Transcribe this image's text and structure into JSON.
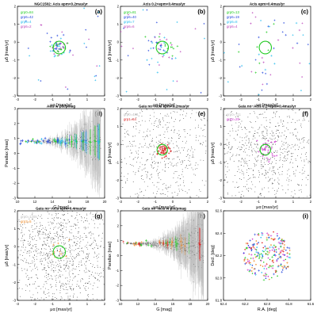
{
  "chart_data": [
    {
      "panel": "a",
      "type": "scatter",
      "title": "NGC1502: Acis epm<0.2mas/yr",
      "xlabel": "μα [mas/yr]",
      "ylabel": "μδ [mas/yr]",
      "xlim": [
        -3,
        2
      ],
      "ylim": [
        -3,
        2
      ],
      "xticks": [
        "-3",
        "-2",
        "-1",
        "0",
        "1",
        "2"
      ],
      "yticks": [
        "-3",
        "-2",
        "-1",
        "0",
        "1",
        "2"
      ],
      "legend": [
        "grp0=84",
        "grp6=42",
        "grp6=4",
        "grp6=2"
      ],
      "legend_colors": [
        "#22cc22",
        "#2244dd",
        "#22bbee",
        "#bb44bb"
      ],
      "circle": {
        "center": [
          -0.6,
          -0.3
        ],
        "radius": 0.35
      },
      "cluster": {
        "center": [
          -0.6,
          -0.3
        ],
        "spread": 0.28,
        "n": 60
      }
    },
    {
      "panel": "b",
      "type": "scatter",
      "title": "Acis 0.2<epm<0.4mas/yr",
      "xlabel": "μα [mas/yr]",
      "ylabel": "μδ [mas/yr]",
      "xlim": [
        -3,
        2
      ],
      "ylim": [
        -3,
        2
      ],
      "xticks": [
        "-3",
        "-2",
        "-1",
        "0",
        "1",
        "2"
      ],
      "yticks": [
        "-3",
        "-2",
        "-1",
        "0",
        "1",
        "2"
      ],
      "legend": [
        "grp0=81",
        "grp6=40",
        "grp6=7",
        "grp6=6"
      ],
      "legend_colors": [
        "#22cc22",
        "#2244dd",
        "#22bbee",
        "#bb44bb"
      ],
      "circle": {
        "center": [
          -0.6,
          -0.3
        ],
        "radius": 0.35
      },
      "cluster": {
        "center": [
          -0.6,
          -0.3
        ],
        "spread": 0.45,
        "n": 45
      }
    },
    {
      "panel": "c",
      "type": "scatter",
      "title": "Acis epm>0.4mas/yr",
      "xlabel": "μα [mas/yr]",
      "ylabel": "μδ [mas/yr]",
      "xlim": [
        -3,
        2
      ],
      "ylim": [
        -3,
        2
      ],
      "xticks": [
        "-3",
        "-2",
        "-1",
        "0",
        "1",
        "2"
      ],
      "yticks": [
        "-3",
        "-2",
        "-1",
        "0",
        "1",
        "2"
      ],
      "legend": [
        "grp0=13",
        "grp6=19",
        "grp6=8",
        "grp6=4"
      ],
      "legend_colors": [
        "#22cc22",
        "#2244dd",
        "#22bbee",
        "#bb44bb"
      ],
      "circle": {
        "center": [
          -0.6,
          -0.3
        ],
        "radius": 0.35
      },
      "cluster": {
        "center": [
          -0.5,
          -0.2
        ],
        "spread": 0.9,
        "n": 28
      }
    },
    {
      "panel": "d",
      "type": "scatter",
      "title": "Acis w plx/pmag",
      "xlabel": "G [mag]",
      "ylabel": "Parallax [mas]",
      "xlim": [
        10,
        21
      ],
      "ylim": [
        -3,
        3
      ],
      "xticks": [
        "10",
        "12",
        "14",
        "16",
        "18",
        "20"
      ],
      "yticks": [
        "-3",
        "-2",
        "-1",
        "0",
        "1",
        "2",
        "3"
      ],
      "band": {
        "y": 0.8,
        "x_start": 10.2,
        "x_end": 20.5
      }
    },
    {
      "panel": "e",
      "type": "scatter",
      "title": "Gaia no−Acis epm<0.2mas/yr",
      "xlabel": "μα [mas/yr]",
      "ylabel": "μδ [mas/yr]",
      "xlim": [
        -3,
        2
      ],
      "ylim": [
        -3,
        2
      ],
      "xticks": [
        "-3",
        "-2",
        "-1",
        "0",
        "1",
        "2"
      ],
      "yticks": [
        "-3",
        "-2",
        "-1",
        "0",
        "1",
        "2"
      ],
      "legend": [
        "grp0=488",
        "grp1=64"
      ],
      "legend_colors": [
        "#bbbbbb",
        "#dd2222"
      ],
      "circle": {
        "center": [
          -0.6,
          -0.3
        ],
        "radius": 0.3
      },
      "cluster": {
        "center": [
          -0.6,
          -0.3
        ],
        "spread": 0.2,
        "n": 50
      }
    },
    {
      "panel": "f",
      "type": "scatter",
      "title": "Gaia no−Acis 0.2<epm<0.4mas/yr",
      "xlabel": "μα [mas/yr]",
      "ylabel": "μδ [mas/yr]",
      "xlim": [
        -3,
        2
      ],
      "ylim": [
        -3,
        2
      ],
      "xticks": [
        "-3",
        "-2",
        "-1",
        "0",
        "1",
        "2"
      ],
      "yticks": [
        "-3",
        "-2",
        "-1",
        "0",
        "1",
        "2"
      ],
      "legend": [
        "grp0=711",
        "grp2=29"
      ],
      "legend_colors": [
        "#bbbbbb",
        "#cc33cc"
      ],
      "circle": {
        "center": [
          -0.6,
          -0.3
        ],
        "radius": 0.3
      },
      "cluster": {
        "center": [
          -0.6,
          -0.3
        ],
        "spread": 0.3,
        "n": 35
      }
    },
    {
      "panel": "g",
      "type": "scatter",
      "title": "Gaia no−Acis epm>0.4mas/yr",
      "xlabel": "μα [mas/yr]",
      "ylabel": "μδ [mas/yr]",
      "xlim": [
        -3,
        2
      ],
      "ylim": [
        -3,
        2
      ],
      "xticks": [
        "-3",
        "-2",
        "-1",
        "0",
        "1",
        "2"
      ],
      "yticks": [
        "-3",
        "-2",
        "-1",
        "0",
        "1",
        "2"
      ],
      "legend": [
        "grp0=1205",
        "grp3=5"
      ],
      "legend_colors": [
        "#bbbbbb",
        "#ee8822"
      ],
      "circle": {
        "center": [
          -0.6,
          -0.3
        ],
        "radius": 0.35
      },
      "cluster": {
        "center": [
          -0.6,
          -0.3
        ],
        "spread": 0.3,
        "n": 10
      }
    },
    {
      "panel": "h",
      "type": "scatter",
      "title": "Gaia no−Acis w plx/pmag",
      "xlabel": "G [mag]",
      "ylabel": "Parallax [mas]",
      "xlim": [
        10,
        21
      ],
      "ylim": [
        -3,
        3
      ],
      "xticks": [
        "10",
        "12",
        "14",
        "16",
        "18",
        "20"
      ],
      "yticks": [
        "-3",
        "-2",
        "-1",
        "0",
        "1",
        "2",
        "3"
      ],
      "band": {
        "y": 0.8,
        "x_start": 10.2,
        "x_end": 20.5
      }
    },
    {
      "panel": "i",
      "type": "scatter",
      "title": "",
      "xlabel": "R.A. [deg]",
      "ylabel": "Decl. [deg]",
      "xlim": [
        62.4,
        61.6
      ],
      "ylim": [
        61.8,
        62.6
      ],
      "xticks": [
        "62.4",
        "62.2",
        "62.0",
        "61.8",
        "61.6"
      ],
      "yticks": [
        "61.8",
        "62.0",
        "62.2",
        "62.4",
        "62.6"
      ],
      "field": {
        "center": [
          62.0,
          62.2
        ],
        "radius": 0.22
      }
    }
  ]
}
